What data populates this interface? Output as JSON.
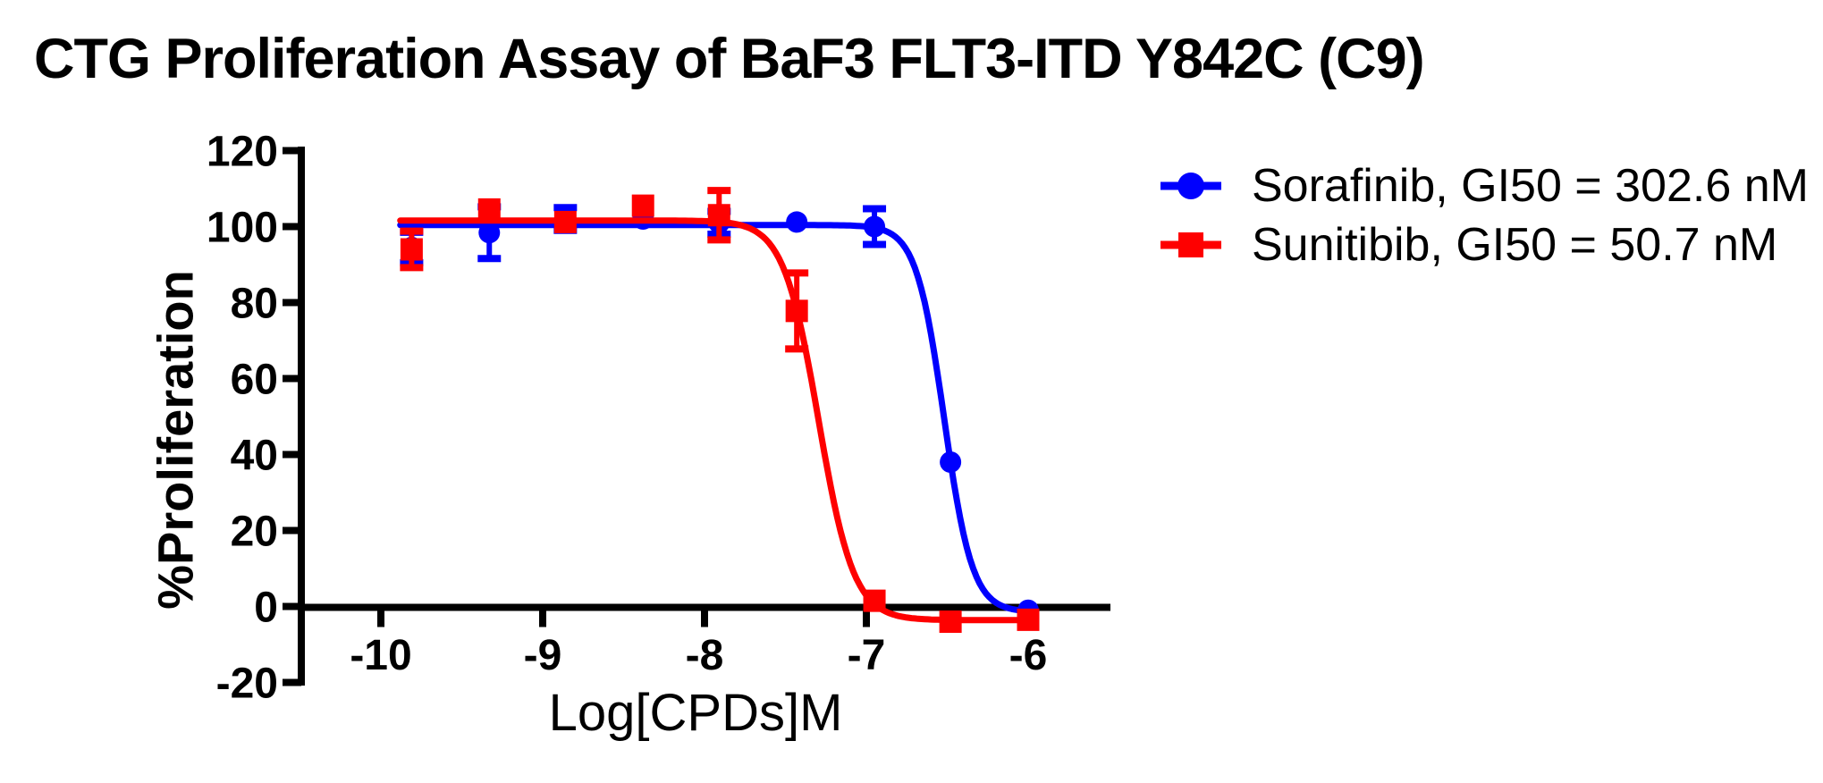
{
  "title": "CTG Proliferation Assay of BaF3 FLT3-ITD Y842C (C9)",
  "chart_data": {
    "type": "line",
    "title": "CTG Proliferation Assay of BaF3 FLT3-ITD Y842C (C9)",
    "xlabel": "Log[CPDs]M",
    "ylabel": "%Proliferation",
    "xlim": [
      -10.5,
      -5.5
    ],
    "ylim": [
      -20,
      120
    ],
    "x_ticks": [
      -10,
      -9,
      -8,
      -7,
      -6
    ],
    "y_ticks": [
      120,
      100,
      80,
      60,
      40,
      20,
      0,
      -20
    ],
    "grid": false,
    "legend_position": "right-of-plot-top",
    "axis_color": "#000000",
    "background_color": "#ffffff",
    "series": [
      {
        "name": "Sorafinib",
        "legend_label": "Sorafinib, GI50 = 302.6 nM",
        "gi50_nM": 302.6,
        "color": "#0000fe",
        "marker": "circle",
        "x": [
          -9.81,
          -9.33,
          -8.86,
          -8.38,
          -7.91,
          -7.43,
          -6.95,
          -6.48,
          -6.0
        ],
        "y": [
          94.5,
          98.4,
          102.0,
          102.0,
          101.0,
          101.2,
          100.0,
          38.0,
          -1.0
        ],
        "yerr": [
          4.0,
          6.8,
          3.0,
          0,
          3.0,
          0,
          4.7,
          0,
          0
        ],
        "fit": {
          "top": 100.4,
          "bottom": -1.5,
          "logIC50": -6.519,
          "hill": 5.0
        },
        "curve_range": [
          -9.88,
          -6.0
        ]
      },
      {
        "name": "Sunitibib",
        "legend_label": "Sunitibib, GI50 = 50.7 nM",
        "gi50_nM": 50.7,
        "color": "#fe0000",
        "marker": "square",
        "x": [
          -9.81,
          -9.33,
          -8.86,
          -8.38,
          -7.91,
          -7.43,
          -6.95,
          -6.48,
          -6.0
        ],
        "y": [
          94.0,
          104.5,
          101.2,
          105.5,
          103.0,
          77.8,
          1.5,
          -4.0,
          -3.5
        ],
        "yerr": [
          4.8,
          0,
          0,
          0,
          6.5,
          10.0,
          0,
          0,
          0
        ],
        "fit": {
          "top": 101.6,
          "bottom": -3.6,
          "logIC50": -7.295,
          "hill": 4.0
        },
        "curve_range": [
          -9.88,
          -6.0
        ]
      }
    ]
  }
}
